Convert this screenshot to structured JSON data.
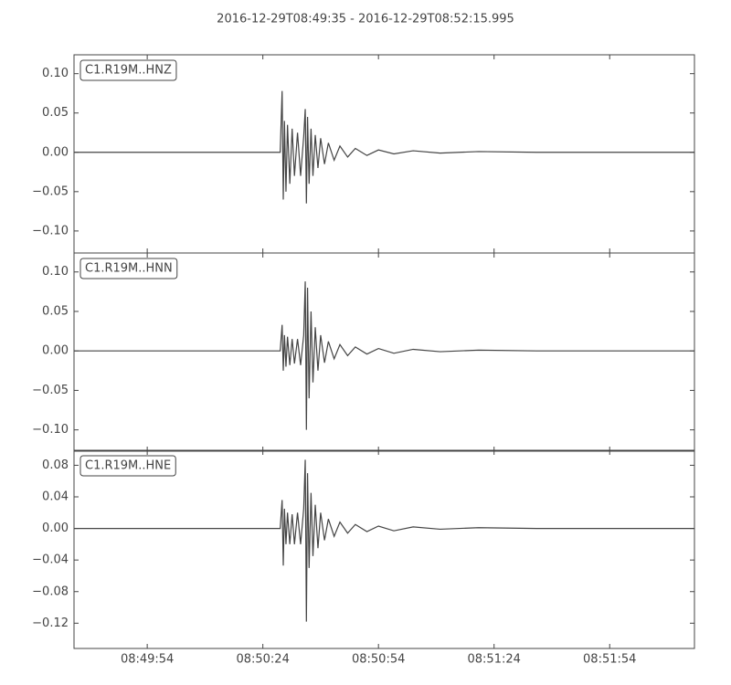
{
  "chart_data": [
    {
      "type": "line",
      "title": "2016-12-29T08:49:35  -  2016-12-29T08:52:15.995",
      "x": [
        "08:49:35",
        "08:50:28.5",
        "08:50:29",
        "08:50:29.3",
        "08:50:29.6",
        "08:50:30",
        "08:50:30.4",
        "08:50:31",
        "08:50:31.6",
        "08:50:32.2",
        "08:50:33",
        "08:50:33.8",
        "08:50:34.6",
        "08:50:35",
        "08:50:35.3",
        "08:50:35.6",
        "08:50:36",
        "08:50:36.5",
        "08:50:37",
        "08:50:37.6",
        "08:50:38.3",
        "08:50:39",
        "08:50:40",
        "08:50:41",
        "08:50:42.5",
        "08:50:44",
        "08:50:46",
        "08:50:48",
        "08:50:51",
        "08:50:54",
        "08:50:58",
        "08:51:03",
        "08:51:10",
        "08:51:20",
        "08:51:35",
        "08:52:15.995"
      ],
      "series": [
        {
          "name": "C1.R19M..HNZ",
          "color": "#444444",
          "values": [
            0,
            0,
            0.078,
            -0.06,
            0.04,
            -0.05,
            0.035,
            -0.04,
            0.03,
            -0.03,
            0.025,
            -0.03,
            0.02,
            0.055,
            -0.065,
            0.045,
            -0.04,
            0.03,
            -0.03,
            0.022,
            -0.02,
            0.018,
            -0.015,
            0.012,
            -0.01,
            0.008,
            -0.006,
            0.005,
            -0.004,
            0.003,
            -0.002,
            0.002,
            -0.001,
            0.001,
            0,
            0
          ]
        }
      ],
      "xlim": [
        "08:49:35",
        "08:52:15.995"
      ],
      "ylim": [
        -0.128,
        0.124
      ],
      "yticks": [
        {
          "value": 0.1,
          "label": "0.10"
        },
        {
          "value": 0.05,
          "label": "0.05"
        },
        {
          "value": 0,
          "label": "0.00"
        },
        {
          "value": -0.05,
          "label": "−0.05"
        },
        {
          "value": -0.1,
          "label": "−0.10"
        }
      ]
    },
    {
      "type": "line",
      "x": [
        "08:49:35",
        "08:50:28.5",
        "08:50:29",
        "08:50:29.3",
        "08:50:29.6",
        "08:50:30",
        "08:50:30.4",
        "08:50:31",
        "08:50:31.6",
        "08:50:32.2",
        "08:50:33",
        "08:50:33.8",
        "08:50:34.6",
        "08:50:35",
        "08:50:35.3",
        "08:50:35.6",
        "08:50:36",
        "08:50:36.5",
        "08:50:37",
        "08:50:37.6",
        "08:50:38.3",
        "08:50:39",
        "08:50:40",
        "08:50:41",
        "08:50:42.5",
        "08:50:44",
        "08:50:46",
        "08:50:48",
        "08:50:51",
        "08:50:54",
        "08:50:58",
        "08:51:03",
        "08:51:10",
        "08:51:20",
        "08:51:35",
        "08:52:15.995"
      ],
      "series": [
        {
          "name": "C1.R19M..HNN",
          "color": "#444444",
          "values": [
            0,
            0,
            0.033,
            -0.025,
            0.02,
            -0.02,
            0.018,
            -0.018,
            0.015,
            -0.016,
            0.015,
            -0.018,
            0.02,
            0.088,
            -0.1,
            0.08,
            -0.06,
            0.05,
            -0.04,
            0.03,
            -0.025,
            0.02,
            -0.015,
            0.012,
            -0.01,
            0.008,
            -0.006,
            0.005,
            -0.004,
            0.003,
            -0.003,
            0.002,
            -0.001,
            0.001,
            0,
            0
          ]
        }
      ],
      "xlim": [
        "08:49:35",
        "08:52:15.995"
      ],
      "ylim": [
        -0.127,
        0.124
      ],
      "yticks": [
        {
          "value": 0.1,
          "label": "0.10"
        },
        {
          "value": 0.05,
          "label": "0.05"
        },
        {
          "value": 0,
          "label": "0.00"
        },
        {
          "value": -0.05,
          "label": "−0.05"
        },
        {
          "value": -0.1,
          "label": "−0.10"
        }
      ]
    },
    {
      "type": "line",
      "x": [
        "08:49:35",
        "08:50:28.5",
        "08:50:29",
        "08:50:29.3",
        "08:50:29.6",
        "08:50:30",
        "08:50:30.4",
        "08:50:31",
        "08:50:31.6",
        "08:50:32.2",
        "08:50:33",
        "08:50:33.8",
        "08:50:34.6",
        "08:50:35",
        "08:50:35.3",
        "08:50:35.6",
        "08:50:36",
        "08:50:36.5",
        "08:50:37",
        "08:50:37.6",
        "08:50:38.3",
        "08:50:39",
        "08:50:40",
        "08:50:41",
        "08:50:42.5",
        "08:50:44",
        "08:50:46",
        "08:50:48",
        "08:50:51",
        "08:50:54",
        "08:50:58",
        "08:51:03",
        "08:51:10",
        "08:51:20",
        "08:51:35",
        "08:52:15.995"
      ],
      "series": [
        {
          "name": "C1.R19M..HNE",
          "color": "#444444",
          "values": [
            0,
            0,
            0.036,
            -0.047,
            0.025,
            -0.02,
            0.02,
            -0.02,
            0.018,
            -0.02,
            0.02,
            -0.02,
            0.025,
            0.087,
            -0.118,
            0.07,
            -0.05,
            0.045,
            -0.035,
            0.03,
            -0.025,
            0.02,
            -0.015,
            0.012,
            -0.01,
            0.008,
            -0.006,
            0.005,
            -0.004,
            0.003,
            -0.003,
            0.002,
            -0.001,
            0.001,
            0,
            0
          ]
        }
      ],
      "xlim": [
        "08:49:35",
        "08:52:15.995"
      ],
      "ylim": [
        -0.152,
        0.099
      ],
      "yticks": [
        {
          "value": 0.08,
          "label": "0.08"
        },
        {
          "value": 0.04,
          "label": "0.04"
        },
        {
          "value": 0,
          "label": "0.00"
        },
        {
          "value": -0.04,
          "label": "−0.04"
        },
        {
          "value": -0.08,
          "label": "−0.08"
        },
        {
          "value": -0.12,
          "label": "−0.12"
        }
      ],
      "xticks": [
        "08:49:54",
        "08:50:24",
        "08:50:54",
        "08:51:24",
        "08:51:54"
      ]
    }
  ]
}
